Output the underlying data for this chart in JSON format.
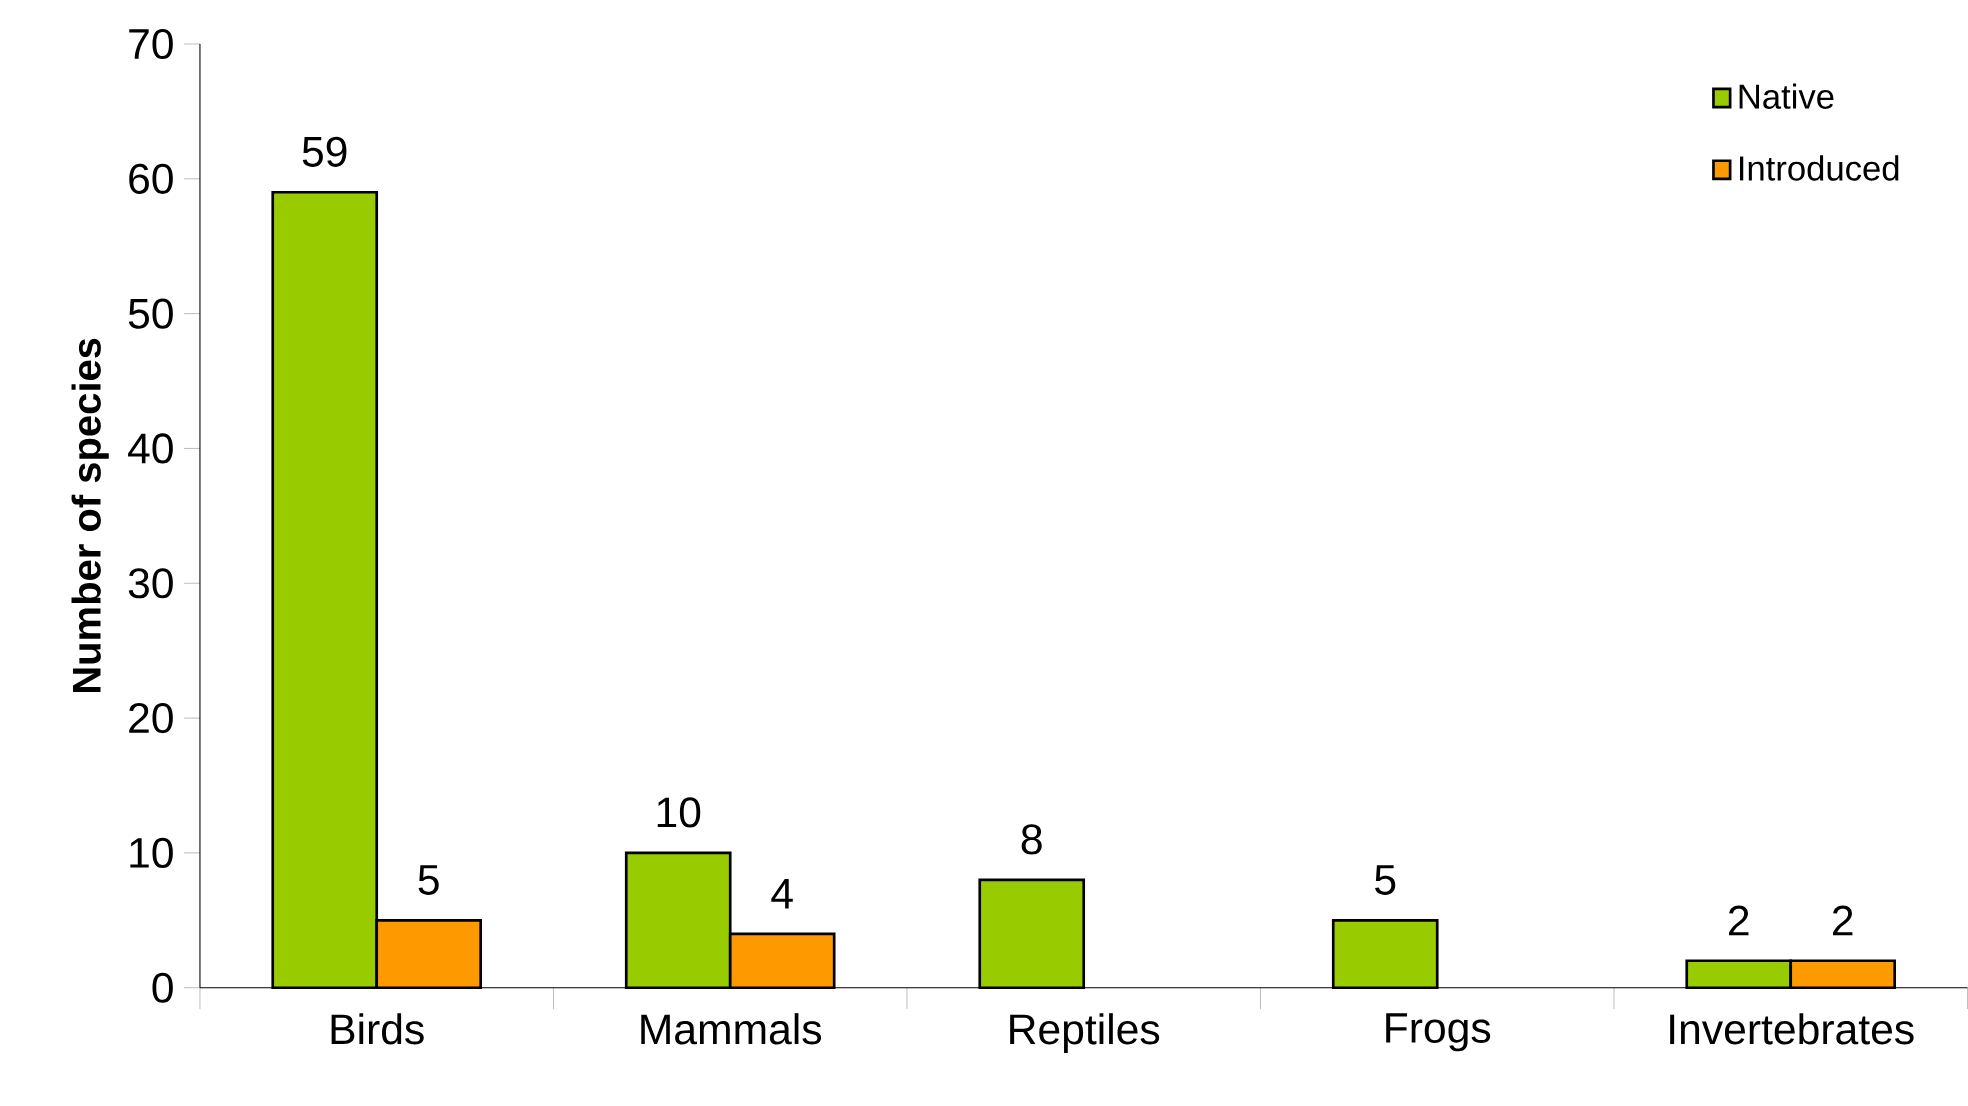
{
  "chart_data": {
    "type": "bar",
    "ylabel": "Number of species",
    "categories": [
      "Birds",
      "Mammals",
      "Reptiles",
      "Frogs",
      "Invertebrates"
    ],
    "series": [
      {
        "name": "Native",
        "color": "#99cc00",
        "values": [
          59,
          10,
          8,
          5,
          2
        ]
      },
      {
        "name": "Introduced",
        "color": "#ff9900",
        "values": [
          5,
          4,
          null,
          null,
          2
        ]
      }
    ],
    "ylim": [
      0,
      70
    ],
    "yticks": [
      0,
      10,
      20,
      30,
      40,
      50,
      60,
      70
    ],
    "grid": false,
    "legend": "top right",
    "data_labels": true
  }
}
